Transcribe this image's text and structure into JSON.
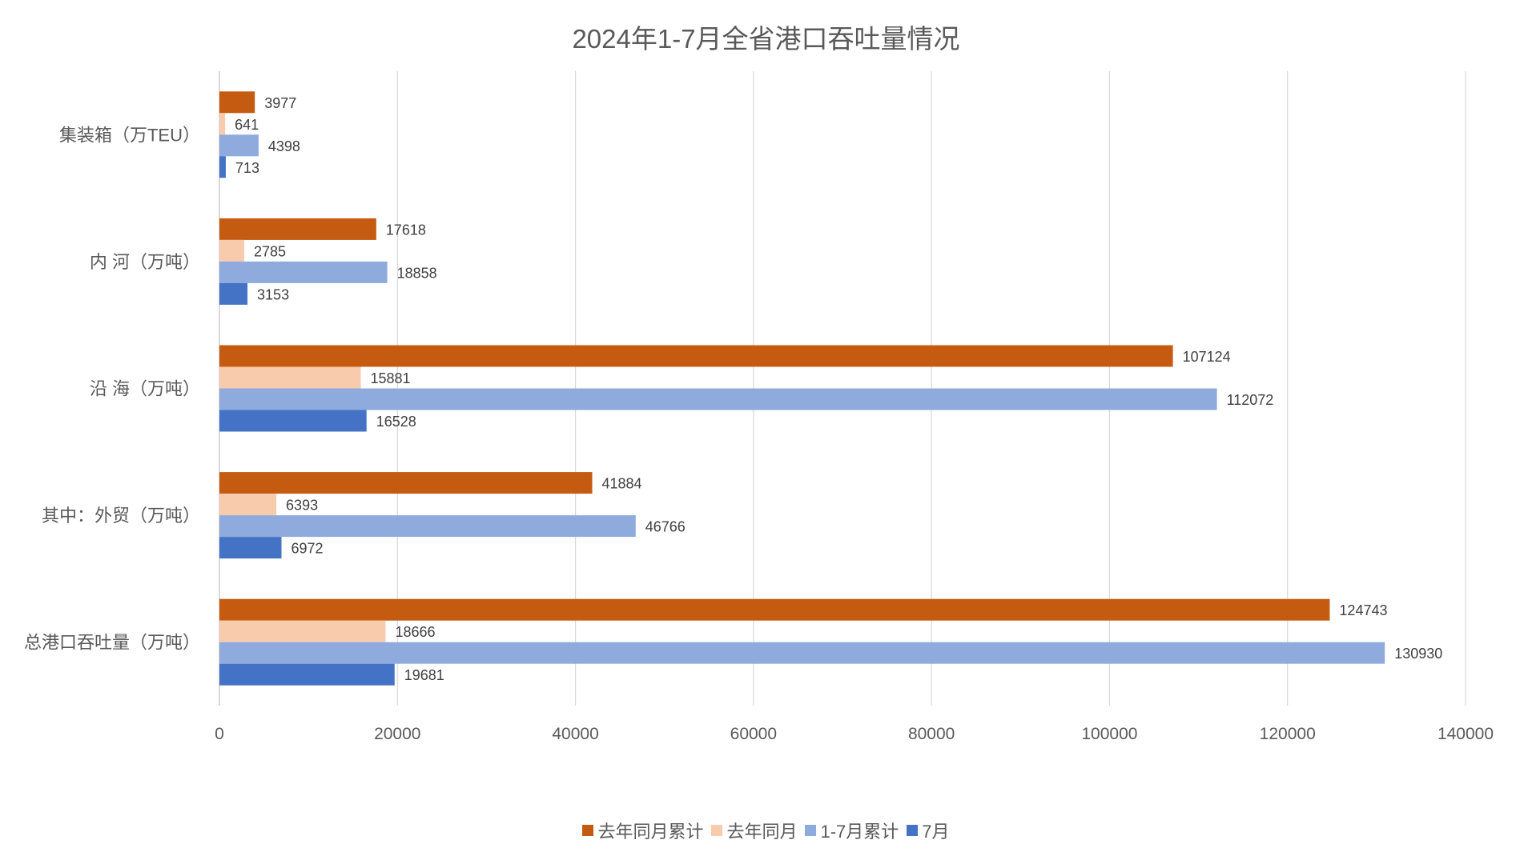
{
  "chart_data": {
    "type": "bar",
    "orientation": "horizontal",
    "title": "2024年1-7月全省港口吞吐量情况",
    "categories": [
      "集装箱（万TEU）",
      "内 河（万吨）",
      "沿 海（万吨）",
      "其中：外贸（万吨）",
      "总港口吞吐量（万吨）"
    ],
    "series": [
      {
        "name": "去年同月累计",
        "color": "#C55A11",
        "values": [
          3977,
          17618,
          107124,
          41884,
          124743
        ]
      },
      {
        "name": "去年同月",
        "color": "#F8CBAD",
        "values": [
          641,
          2785,
          15881,
          6393,
          18666
        ]
      },
      {
        "name": "1-7月累计",
        "color": "#8FAADC",
        "values": [
          4398,
          18858,
          112072,
          46766,
          130930
        ]
      },
      {
        "name": "7月",
        "color": "#4472C4",
        "values": [
          713,
          3153,
          16528,
          6972,
          19681
        ]
      }
    ],
    "xlim": [
      0,
      140000
    ],
    "xticks": [
      "0",
      "20000",
      "40000",
      "60000",
      "80000",
      "100000",
      "120000",
      "140000"
    ],
    "grid": true,
    "legend_position": "bottom",
    "data_labels": true
  }
}
